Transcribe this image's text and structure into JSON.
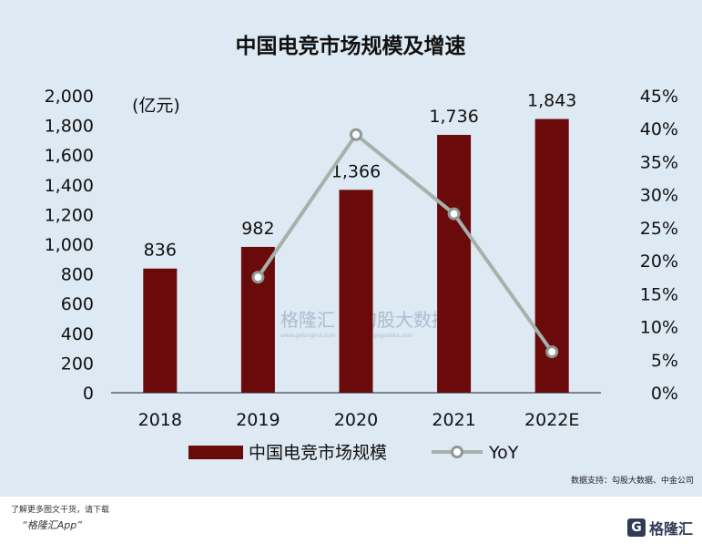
{
  "chart_data": {
    "type": "bar+line",
    "title": "中国电竞市场规模及增速",
    "unit_label": "(亿元)",
    "categories": [
      "2018",
      "2019",
      "2020",
      "2021",
      "2022E"
    ],
    "series": [
      {
        "name": "中国电竞市场规模",
        "type": "bar",
        "axis": "left",
        "color": "#6b0a0a",
        "values": [
          836,
          982,
          1366,
          1736,
          1843
        ],
        "labels": [
          "836",
          "982",
          "1,366",
          "1,736",
          "1,843"
        ]
      },
      {
        "name": "YoY",
        "type": "line",
        "axis": "right",
        "color": "#a7b0ab",
        "values": [
          null,
          17.5,
          39.1,
          27.1,
          6.2
        ]
      }
    ],
    "left_axis": {
      "ylim": [
        0,
        2000
      ],
      "ticks": [
        "0",
        "200",
        "400",
        "600",
        "800",
        "1,000",
        "1,200",
        "1,400",
        "1,600",
        "1,800",
        "2,000"
      ]
    },
    "right_axis": {
      "ylim": [
        0,
        45
      ],
      "ticks": [
        "0%",
        "5%",
        "10%",
        "15%",
        "20%",
        "25%",
        "30%",
        "35%",
        "40%",
        "45%"
      ]
    },
    "source": "数据支持：勾股大数据、中金公司"
  },
  "watermark": {
    "left": "格隆汇",
    "right": "勾股大数据",
    "left_sub": "www.gelonghui.com",
    "right_sub": "www.gogudata.com"
  },
  "footer": {
    "line1": "了解更多图文干货，请下载",
    "line2": "“格隆汇App”",
    "brand": "格隆汇",
    "brand_icon": "G"
  }
}
